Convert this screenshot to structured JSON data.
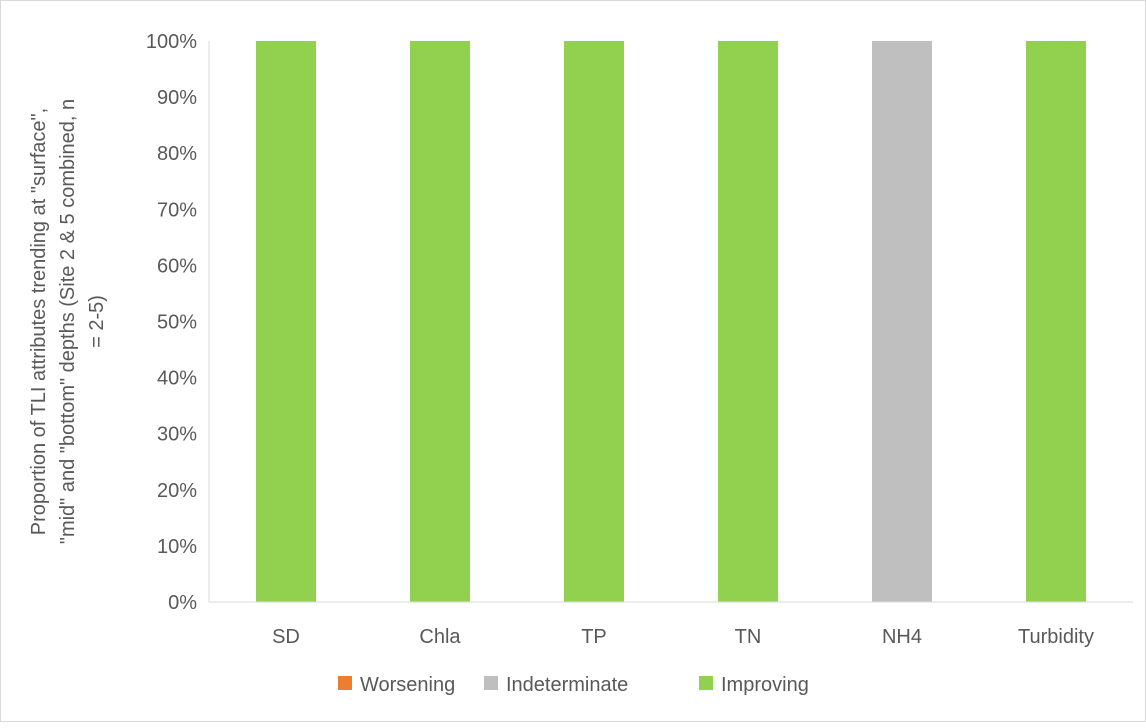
{
  "chart_data": {
    "type": "bar",
    "stacked": true,
    "categories": [
      "SD",
      "Chla",
      "TP",
      "TN",
      "NH4",
      "Turbidity"
    ],
    "series": [
      {
        "name": "Worsening",
        "color": "#ed7d31",
        "values": [
          0,
          0,
          0,
          0,
          0,
          0
        ]
      },
      {
        "name": "Indeterminate",
        "color": "#bfbfbf",
        "values": [
          0,
          0,
          0,
          0,
          1,
          0
        ]
      },
      {
        "name": "Improving",
        "color": "#92d050",
        "values": [
          1,
          1,
          1,
          1,
          0,
          1
        ]
      }
    ],
    "ylabel_lines": [
      "Proportion of TLI attributes trending at \"surface\",",
      "\"mid\" and \"bottom\" depths (Site 2 & 5 combined, n",
      "= 2-5)"
    ],
    "y_ticks": [
      "0%",
      "10%",
      "20%",
      "30%",
      "40%",
      "50%",
      "60%",
      "70%",
      "80%",
      "90%",
      "100%"
    ],
    "ylim": [
      0,
      1
    ],
    "grid": false,
    "legend_position": "bottom"
  }
}
